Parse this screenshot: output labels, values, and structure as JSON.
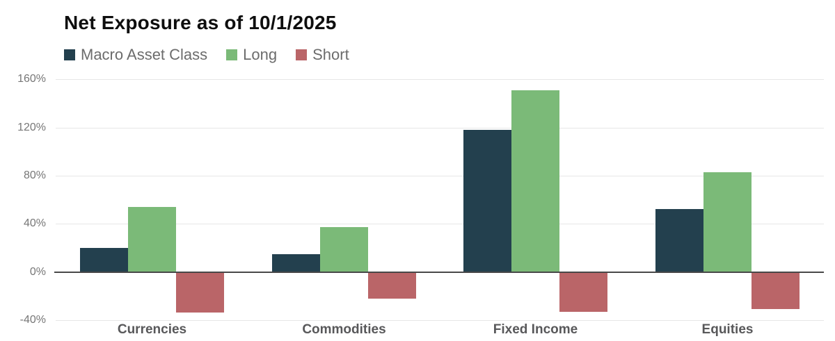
{
  "title": "Net Exposure as of 10/1/2025",
  "legend": [
    {
      "label": "Macro Asset Class",
      "color": "#23404e"
    },
    {
      "label": "Long",
      "color": "#7bba78"
    },
    {
      "label": "Short",
      "color": "#ba6568"
    }
  ],
  "chart_data": {
    "type": "bar",
    "title": "Net Exposure as of 10/1/2025",
    "categories": [
      "Currencies",
      "Commodities",
      "Fixed Income",
      "Equities"
    ],
    "series": [
      {
        "name": "Macro Asset Class",
        "color": "#23404e",
        "values": [
          20,
          15,
          118,
          52
        ]
      },
      {
        "name": "Long",
        "color": "#7bba78",
        "values": [
          54,
          37,
          151,
          83
        ]
      },
      {
        "name": "Short",
        "color": "#ba6568",
        "values": [
          -34,
          -22,
          -33,
          -31
        ]
      }
    ],
    "xlabel": "",
    "ylabel": "",
    "unit": "%",
    "yticks": [
      160,
      120,
      80,
      40,
      0,
      -40
    ],
    "ytick_labels": [
      "160%",
      "120%",
      "80%",
      "40%",
      "0%",
      "-40%"
    ],
    "ylim": [
      -40,
      160
    ],
    "grid": true,
    "legend_position": "top-left"
  }
}
